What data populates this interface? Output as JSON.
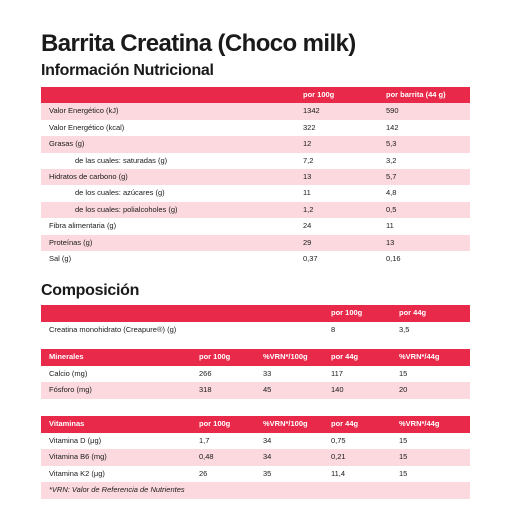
{
  "title": "Barrita Creatina (Choco milk)",
  "nutrition": {
    "heading": "Información Nutricional",
    "headers": [
      "",
      "por 100g",
      "por barrita (44 g)"
    ],
    "rows": [
      {
        "label": "Valor Energético (kJ)",
        "per100": "1342",
        "perBar": "590",
        "indent": false
      },
      {
        "label": "Valor Energético (kcal)",
        "per100": "322",
        "perBar": "142",
        "indent": false
      },
      {
        "label": "Grasas (g)",
        "per100": "12",
        "perBar": "5,3",
        "indent": false
      },
      {
        "label": "de las cuales: saturadas (g)",
        "per100": "7,2",
        "perBar": "3,2",
        "indent": true
      },
      {
        "label": "Hidratos de carbono (g)",
        "per100": "13",
        "perBar": "5,7",
        "indent": false
      },
      {
        "label": "de los cuales: azúcares (g)",
        "per100": "11",
        "perBar": "4,8",
        "indent": true
      },
      {
        "label": "de los cuales: polialcoholes (g)",
        "per100": "1,2",
        "perBar": "0,5",
        "indent": true
      },
      {
        "label": "Fibra alimentaria (g)",
        "per100": "24",
        "perBar": "11",
        "indent": false
      },
      {
        "label": "Proteínas (g)",
        "per100": "29",
        "perBar": "13",
        "indent": false
      },
      {
        "label": "Sal (g)",
        "per100": "0,37",
        "perBar": "0,16",
        "indent": false
      }
    ]
  },
  "composition": {
    "heading": "Composición",
    "headers": [
      "",
      "por 100g",
      "por 44g"
    ],
    "rows": [
      {
        "label": "Creatina monohidrato (Creapure®) (g)",
        "per100": "8",
        "per44": "3,5"
      }
    ]
  },
  "minerals": {
    "headers": [
      "Minerales",
      "por 100g",
      "%VRN*/100g",
      "por 44g",
      "%VRN*/44g"
    ],
    "rows": [
      [
        "Calcio (mg)",
        "266",
        "33",
        "117",
        "15"
      ],
      [
        "Fósforo (mg)",
        "318",
        "45",
        "140",
        "20"
      ]
    ]
  },
  "vitamins": {
    "headers": [
      "Vitaminas",
      "por 100g",
      "%VRN*/100g",
      "por 44g",
      "%VRN*/44g"
    ],
    "rows": [
      [
        "Vitamina D (μg)",
        "1,7",
        "34",
        "0,75",
        "15"
      ],
      [
        "Vitamina B6 (mg)",
        "0,48",
        "34",
        "0,21",
        "15"
      ],
      [
        "Vitamina K2 (μg)",
        "26",
        "35",
        "11,4",
        "15"
      ]
    ],
    "note": "*VRN: Valor de Referencia de Nutrientes"
  },
  "colors": {
    "accent": "#e8294a",
    "row_tint": "#fbd9de"
  }
}
